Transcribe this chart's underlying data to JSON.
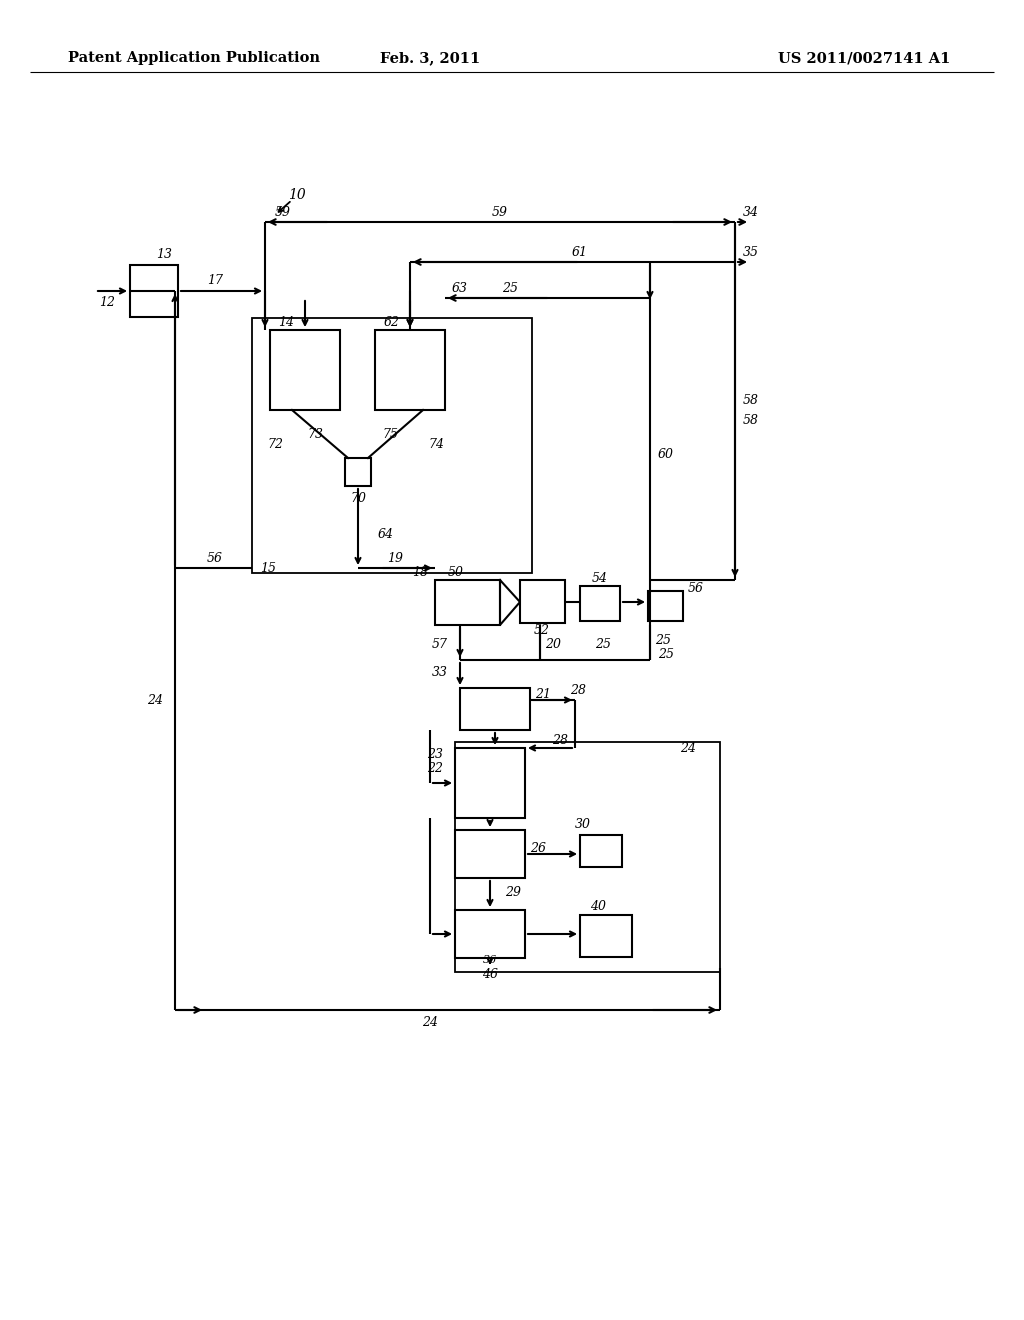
{
  "bg_color": "#ffffff",
  "header_left": "Patent Application Publication",
  "header_mid": "Feb. 3, 2011",
  "header_right": "US 2011/0027141 A1"
}
